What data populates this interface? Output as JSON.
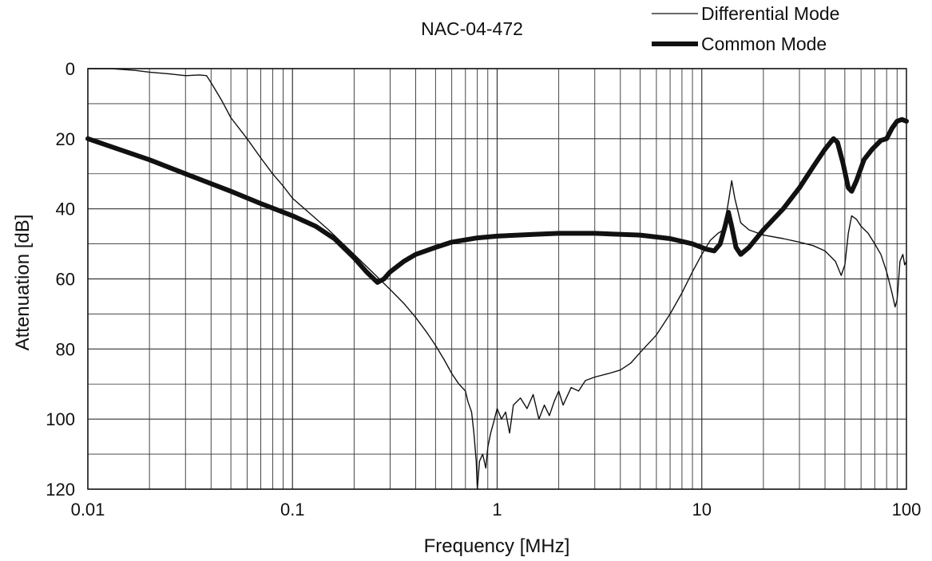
{
  "chart_data": {
    "type": "line",
    "title": "NAC-04-472",
    "xlabel": "Frequency [MHz]",
    "ylabel": "Attenuation [dB]",
    "x_scale": "log",
    "xlim": [
      0.01,
      100
    ],
    "ylim": [
      0,
      120
    ],
    "y_inverted": true,
    "x_ticks": [
      0.01,
      0.1,
      1,
      10,
      100
    ],
    "x_tick_labels": [
      "0.01",
      "0.1",
      "1",
      "10",
      "100"
    ],
    "y_ticks": [
      0,
      20,
      40,
      60,
      80,
      100,
      120
    ],
    "y_tick_labels": [
      "0",
      "20",
      "40",
      "60",
      "80",
      "100",
      "120"
    ],
    "grid": true,
    "legend_position": "top-right",
    "series": [
      {
        "name": "Differential Mode",
        "style": "thin",
        "color": "#111111",
        "points": [
          [
            0.01,
            0.0
          ],
          [
            0.013,
            0.0
          ],
          [
            0.017,
            0.5
          ],
          [
            0.02,
            1.0
          ],
          [
            0.025,
            1.5
          ],
          [
            0.03,
            2.0
          ],
          [
            0.035,
            1.8
          ],
          [
            0.038,
            2.0
          ],
          [
            0.04,
            4.0
          ],
          [
            0.045,
            9.0
          ],
          [
            0.05,
            14.0
          ],
          [
            0.06,
            20.0
          ],
          [
            0.07,
            25.5
          ],
          [
            0.08,
            30.0
          ],
          [
            0.09,
            33.5
          ],
          [
            0.1,
            37.0
          ],
          [
            0.12,
            41.0
          ],
          [
            0.15,
            46.0
          ],
          [
            0.2,
            53.0
          ],
          [
            0.25,
            58.5
          ],
          [
            0.3,
            63.0
          ],
          [
            0.35,
            67.0
          ],
          [
            0.4,
            71.0
          ],
          [
            0.45,
            75.0
          ],
          [
            0.5,
            79.0
          ],
          [
            0.55,
            83.0
          ],
          [
            0.6,
            87.0
          ],
          [
            0.65,
            90.0
          ],
          [
            0.7,
            92.0
          ],
          [
            0.72,
            95.0
          ],
          [
            0.75,
            98.0
          ],
          [
            0.77,
            104.0
          ],
          [
            0.79,
            112.0
          ],
          [
            0.8,
            120.0
          ],
          [
            0.82,
            112.0
          ],
          [
            0.85,
            110.0
          ],
          [
            0.88,
            114.0
          ],
          [
            0.9,
            108.0
          ],
          [
            0.93,
            104.0
          ],
          [
            0.96,
            101.0
          ],
          [
            1.0,
            97.0
          ],
          [
            1.05,
            100.0
          ],
          [
            1.1,
            98.0
          ],
          [
            1.15,
            104.0
          ],
          [
            1.2,
            96.0
          ],
          [
            1.3,
            94.0
          ],
          [
            1.4,
            97.0
          ],
          [
            1.5,
            93.0
          ],
          [
            1.6,
            100.0
          ],
          [
            1.7,
            96.0
          ],
          [
            1.8,
            99.0
          ],
          [
            1.9,
            95.0
          ],
          [
            2.0,
            92.0
          ],
          [
            2.1,
            96.0
          ],
          [
            2.3,
            91.0
          ],
          [
            2.5,
            92.0
          ],
          [
            2.7,
            89.0
          ],
          [
            3.0,
            88.0
          ],
          [
            3.5,
            87.0
          ],
          [
            4.0,
            86.0
          ],
          [
            4.5,
            84.0
          ],
          [
            5.0,
            81.0
          ],
          [
            6.0,
            76.0
          ],
          [
            7.0,
            70.0
          ],
          [
            8.0,
            64.0
          ],
          [
            9.0,
            58.0
          ],
          [
            10.0,
            53.0
          ],
          [
            11.0,
            49.0
          ],
          [
            12.0,
            47.0
          ],
          [
            12.8,
            46.0
          ],
          [
            13.5,
            38.0
          ],
          [
            14.0,
            32.0
          ],
          [
            14.5,
            37.0
          ],
          [
            15.5,
            44.0
          ],
          [
            17.0,
            46.0
          ],
          [
            20.0,
            47.5
          ],
          [
            25.0,
            48.5
          ],
          [
            30.0,
            49.5
          ],
          [
            35.0,
            50.5
          ],
          [
            40.0,
            52.0
          ],
          [
            45.0,
            55.0
          ],
          [
            48.0,
            59.0
          ],
          [
            50.0,
            56.0
          ],
          [
            52.0,
            47.0
          ],
          [
            54.0,
            42.0
          ],
          [
            57.0,
            43.0
          ],
          [
            60.0,
            45.0
          ],
          [
            65.0,
            47.0
          ],
          [
            70.0,
            50.0
          ],
          [
            75.0,
            53.0
          ],
          [
            80.0,
            58.0
          ],
          [
            85.0,
            64.0
          ],
          [
            88.0,
            68.0
          ],
          [
            90.0,
            66.0
          ],
          [
            93.0,
            55.0
          ],
          [
            96.0,
            53.0
          ],
          [
            98.0,
            56.0
          ],
          [
            100.0,
            55.0
          ]
        ]
      },
      {
        "name": "Common Mode",
        "style": "thick",
        "color": "#111111",
        "points": [
          [
            0.01,
            20.0
          ],
          [
            0.02,
            26.0
          ],
          [
            0.03,
            30.0
          ],
          [
            0.05,
            35.0
          ],
          [
            0.07,
            38.5
          ],
          [
            0.1,
            42.0
          ],
          [
            0.13,
            45.0
          ],
          [
            0.16,
            48.5
          ],
          [
            0.2,
            54.0
          ],
          [
            0.23,
            58.0
          ],
          [
            0.26,
            61.0
          ],
          [
            0.28,
            60.0
          ],
          [
            0.3,
            58.0
          ],
          [
            0.35,
            55.0
          ],
          [
            0.4,
            53.0
          ],
          [
            0.5,
            51.0
          ],
          [
            0.6,
            49.5
          ],
          [
            0.8,
            48.3
          ],
          [
            1.0,
            47.8
          ],
          [
            1.5,
            47.3
          ],
          [
            2.0,
            47.0
          ],
          [
            3.0,
            47.0
          ],
          [
            5.0,
            47.5
          ],
          [
            7.0,
            48.5
          ],
          [
            9.0,
            50.0
          ],
          [
            10.5,
            51.5
          ],
          [
            11.5,
            52.0
          ],
          [
            12.3,
            50.0
          ],
          [
            13.0,
            45.0
          ],
          [
            13.5,
            41.0
          ],
          [
            14.0,
            45.0
          ],
          [
            14.7,
            51.0
          ],
          [
            15.5,
            53.0
          ],
          [
            17.0,
            51.0
          ],
          [
            20.0,
            46.0
          ],
          [
            25.0,
            40.0
          ],
          [
            30.0,
            34.0
          ],
          [
            35.0,
            28.0
          ],
          [
            40.0,
            23.0
          ],
          [
            44.0,
            20.0
          ],
          [
            46.0,
            21.0
          ],
          [
            49.0,
            27.0
          ],
          [
            52.0,
            34.0
          ],
          [
            54.0,
            35.0
          ],
          [
            57.0,
            32.0
          ],
          [
            62.0,
            26.0
          ],
          [
            68.0,
            23.0
          ],
          [
            75.0,
            20.5
          ],
          [
            80.0,
            20.0
          ],
          [
            85.0,
            17.0
          ],
          [
            90.0,
            15.0
          ],
          [
            95.0,
            14.5
          ],
          [
            100.0,
            15.0
          ]
        ]
      }
    ]
  }
}
